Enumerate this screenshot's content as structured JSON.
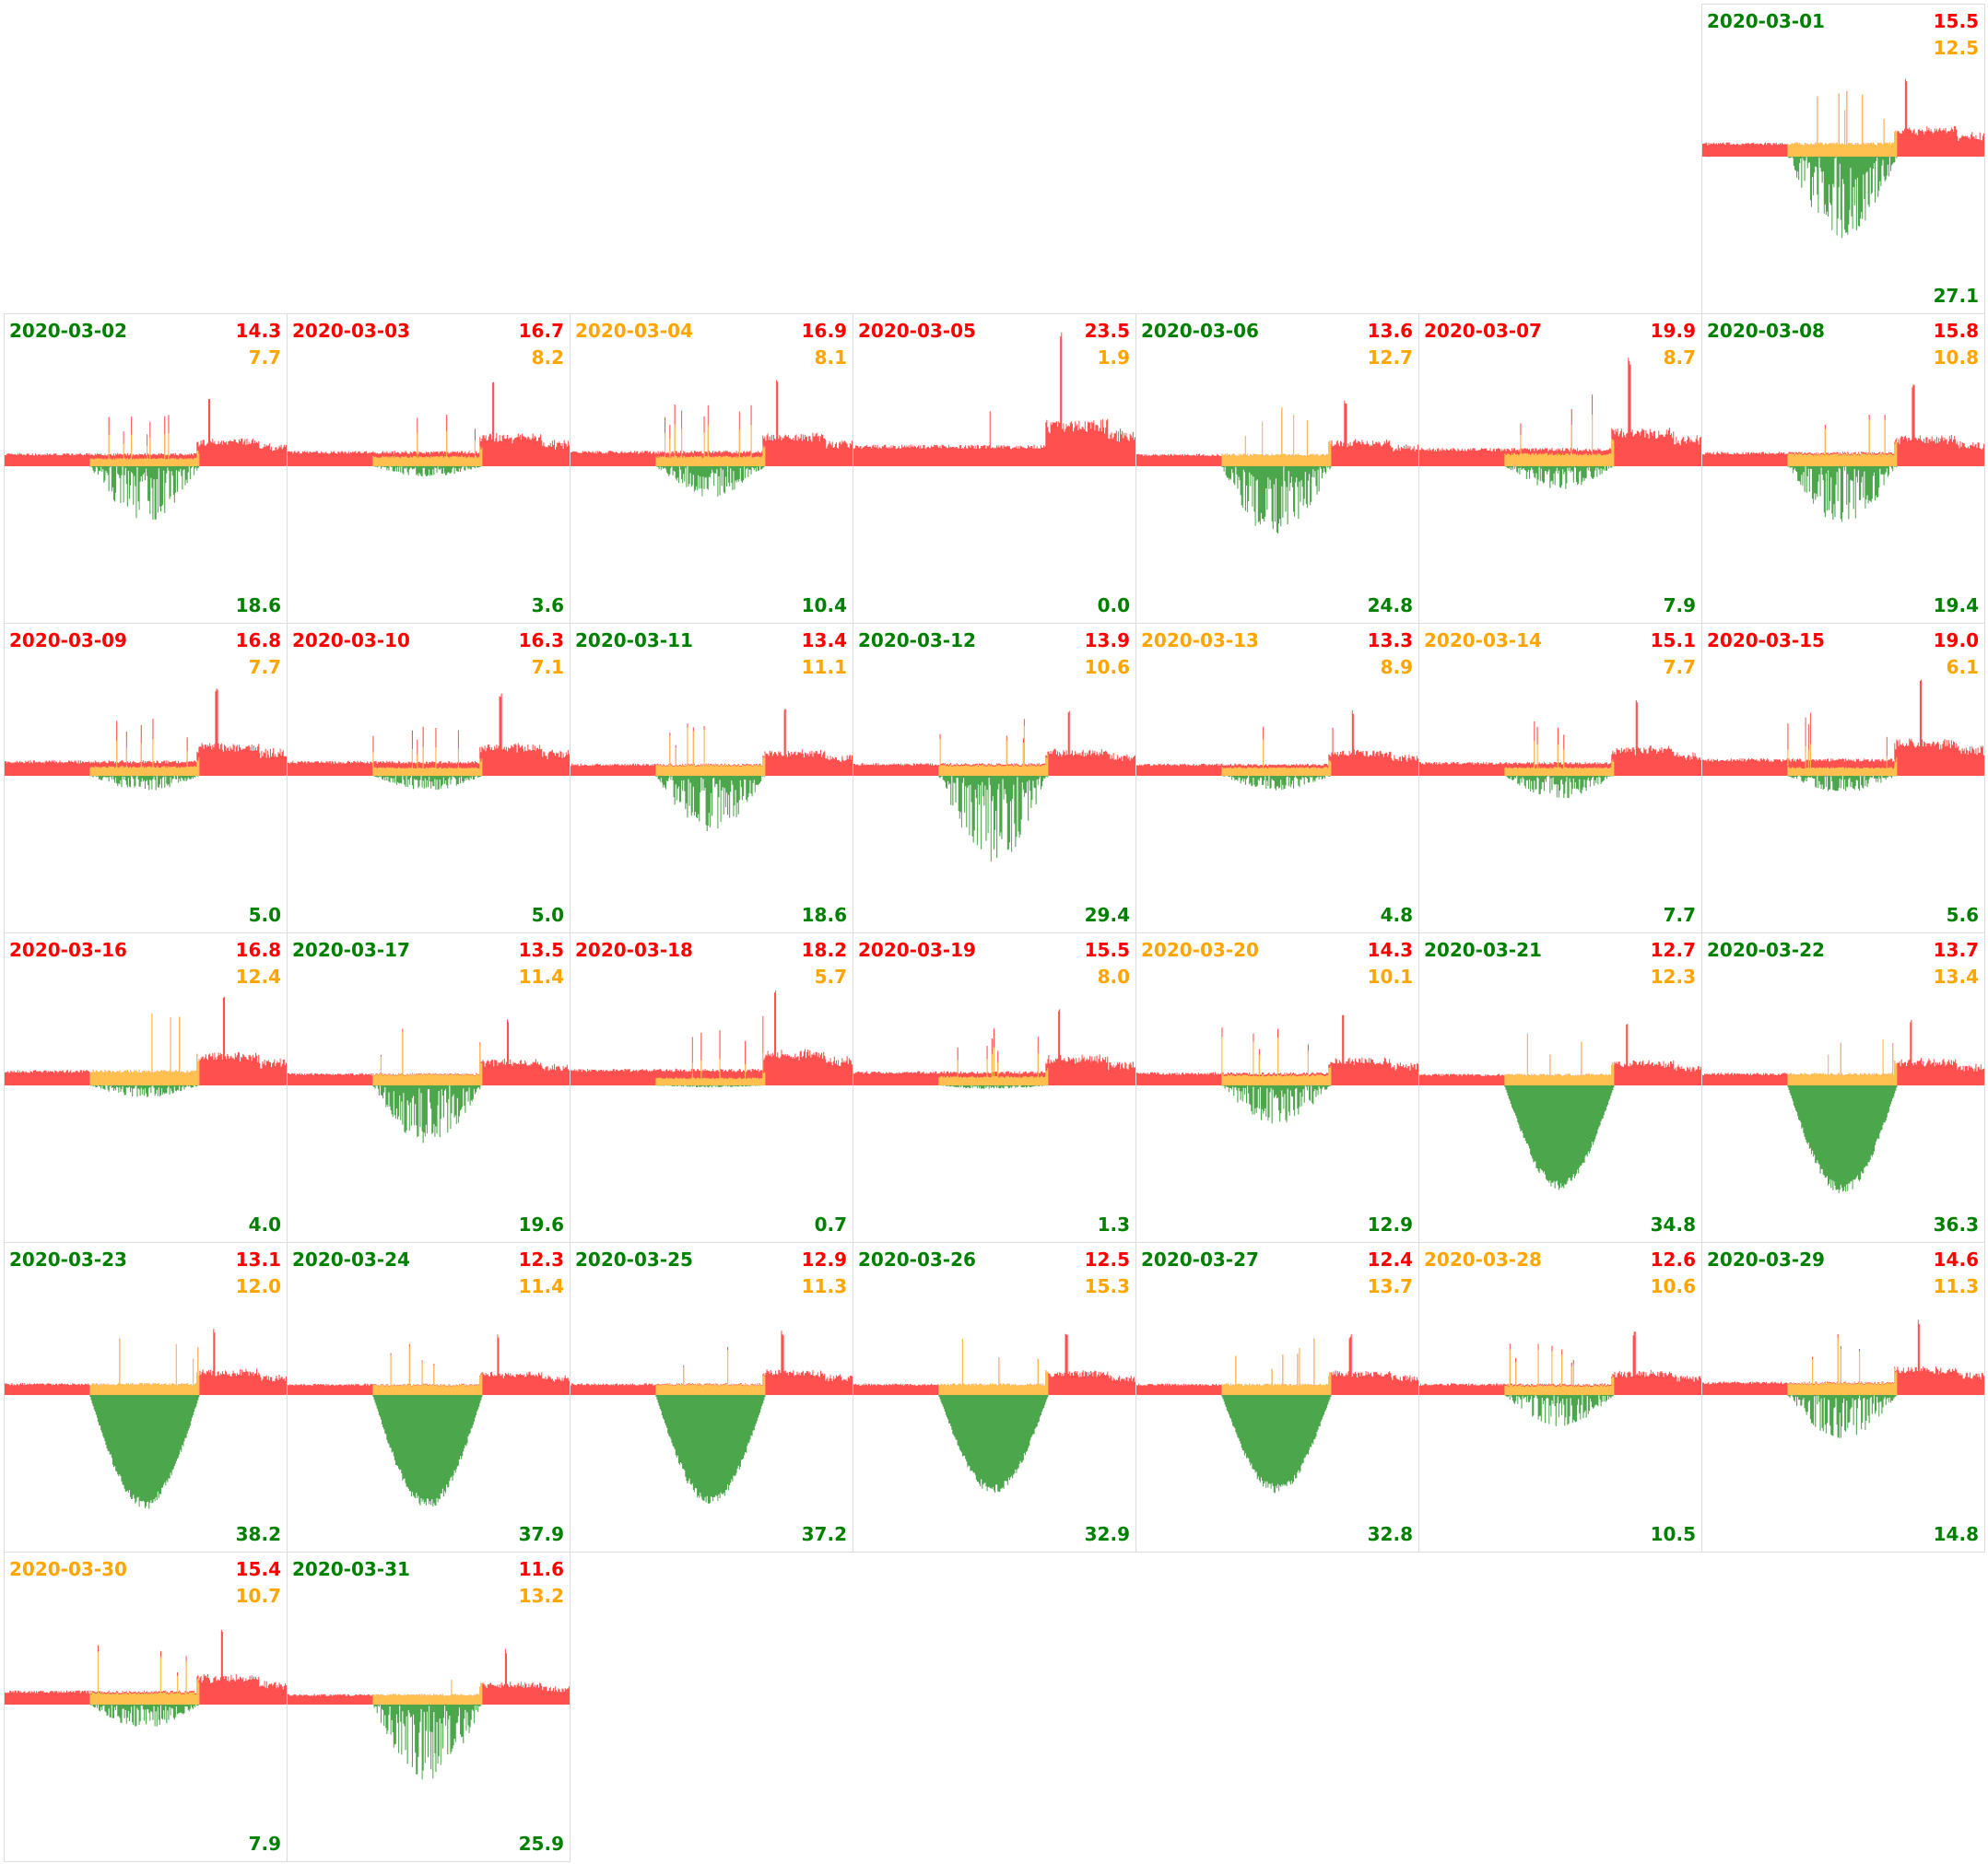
{
  "chart_data": {
    "type": "bar",
    "title": "",
    "colors": {
      "consumption": "#ff5050",
      "self_consumption": "#ffc050",
      "production": "#4ca64c",
      "status_green": "#008000",
      "status_red": "#ff0000",
      "status_orange": "#ffa500"
    },
    "days": [
      {
        "date": "2020-03-01",
        "status": "green",
        "consumption": "15.5",
        "self": "12.5",
        "production": "27.1"
      },
      {
        "date": "2020-03-02",
        "status": "green",
        "consumption": "14.3",
        "self": "7.7",
        "production": "18.6"
      },
      {
        "date": "2020-03-03",
        "status": "red",
        "consumption": "16.7",
        "self": "8.2",
        "production": "3.6"
      },
      {
        "date": "2020-03-04",
        "status": "orange",
        "consumption": "16.9",
        "self": "8.1",
        "production": "10.4"
      },
      {
        "date": "2020-03-05",
        "status": "red",
        "consumption": "23.5",
        "self": "1.9",
        "production": "0.0"
      },
      {
        "date": "2020-03-06",
        "status": "green",
        "consumption": "13.6",
        "self": "12.7",
        "production": "24.8"
      },
      {
        "date": "2020-03-07",
        "status": "red",
        "consumption": "19.9",
        "self": "8.7",
        "production": "7.9"
      },
      {
        "date": "2020-03-08",
        "status": "green",
        "consumption": "15.8",
        "self": "10.8",
        "production": "19.4"
      },
      {
        "date": "2020-03-09",
        "status": "red",
        "consumption": "16.8",
        "self": "7.7",
        "production": "5.0"
      },
      {
        "date": "2020-03-10",
        "status": "red",
        "consumption": "16.3",
        "self": "7.1",
        "production": "5.0"
      },
      {
        "date": "2020-03-11",
        "status": "green",
        "consumption": "13.4",
        "self": "11.1",
        "production": "18.6"
      },
      {
        "date": "2020-03-12",
        "status": "green",
        "consumption": "13.9",
        "self": "10.6",
        "production": "29.4"
      },
      {
        "date": "2020-03-13",
        "status": "orange",
        "consumption": "13.3",
        "self": "8.9",
        "production": "4.8"
      },
      {
        "date": "2020-03-14",
        "status": "orange",
        "consumption": "15.1",
        "self": "7.7",
        "production": "7.7"
      },
      {
        "date": "2020-03-15",
        "status": "red",
        "consumption": "19.0",
        "self": "6.1",
        "production": "5.6"
      },
      {
        "date": "2020-03-16",
        "status": "red",
        "consumption": "16.8",
        "self": "12.4",
        "production": "4.0"
      },
      {
        "date": "2020-03-17",
        "status": "green",
        "consumption": "13.5",
        "self": "11.4",
        "production": "19.6"
      },
      {
        "date": "2020-03-18",
        "status": "red",
        "consumption": "18.2",
        "self": "5.7",
        "production": "0.7"
      },
      {
        "date": "2020-03-19",
        "status": "red",
        "consumption": "15.5",
        "self": "8.0",
        "production": "1.3"
      },
      {
        "date": "2020-03-20",
        "status": "orange",
        "consumption": "14.3",
        "self": "10.1",
        "production": "12.9"
      },
      {
        "date": "2020-03-21",
        "status": "green",
        "consumption": "12.7",
        "self": "12.3",
        "production": "34.8"
      },
      {
        "date": "2020-03-22",
        "status": "green",
        "consumption": "13.7",
        "self": "13.4",
        "production": "36.3"
      },
      {
        "date": "2020-03-23",
        "status": "green",
        "consumption": "13.1",
        "self": "12.0",
        "production": "38.2"
      },
      {
        "date": "2020-03-24",
        "status": "green",
        "consumption": "12.3",
        "self": "11.4",
        "production": "37.9"
      },
      {
        "date": "2020-03-25",
        "status": "green",
        "consumption": "12.9",
        "self": "11.3",
        "production": "37.2"
      },
      {
        "date": "2020-03-26",
        "status": "green",
        "consumption": "12.5",
        "self": "15.3",
        "production": "32.9"
      },
      {
        "date": "2020-03-27",
        "status": "green",
        "consumption": "12.4",
        "self": "13.7",
        "production": "32.8"
      },
      {
        "date": "2020-03-28",
        "status": "orange",
        "consumption": "12.6",
        "self": "10.6",
        "production": "10.5"
      },
      {
        "date": "2020-03-29",
        "status": "green",
        "consumption": "14.6",
        "self": "11.3",
        "production": "14.8"
      },
      {
        "date": "2020-03-30",
        "status": "orange",
        "consumption": "15.4",
        "self": "10.7",
        "production": "7.9"
      },
      {
        "date": "2020-03-31",
        "status": "green",
        "consumption": "11.6",
        "self": "13.2",
        "production": "25.9"
      }
    ]
  }
}
